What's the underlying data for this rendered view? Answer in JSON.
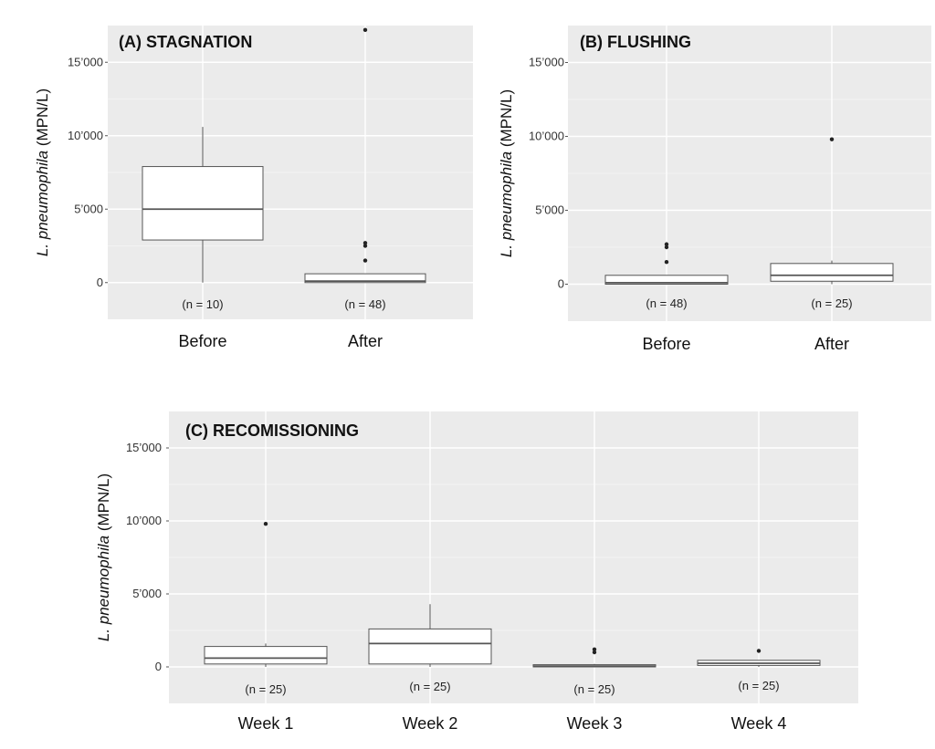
{
  "chart_data": [
    {
      "panel": "A",
      "type": "box",
      "title": "(A) STAGNATION",
      "ylabel_italic": "L. pneumophila",
      "ylabel_unit": " (MPN/L)",
      "yticks": [
        0,
        5000,
        10000,
        15000
      ],
      "ytick_labels": [
        "0",
        "5’000",
        "10’000",
        "15’000"
      ],
      "ylim": [
        -2500,
        17500
      ],
      "categories": [
        "Before",
        "After"
      ],
      "n_labels": [
        "(n = 10)",
        "(n = 48)"
      ],
      "boxes": [
        {
          "category": "Before",
          "whisker_low": 0,
          "q1": 2900,
          "median": 5000,
          "q3": 7900,
          "whisker_high": 10600,
          "outliers": []
        },
        {
          "category": "After",
          "whisker_low": 0,
          "q1": 0,
          "median": 100,
          "q3": 600,
          "whisker_high": 600,
          "outliers": [
            1500,
            2500,
            2700,
            17200
          ]
        }
      ]
    },
    {
      "panel": "B",
      "type": "box",
      "title": "(B) FLUSHING",
      "ylabel_italic": "L. pneumophila",
      "ylabel_unit": " (MPN/L)",
      "yticks": [
        0,
        5000,
        10000,
        15000
      ],
      "ytick_labels": [
        "0",
        "5’000",
        "10’000",
        "15’000"
      ],
      "ylim": [
        -2500,
        17500
      ],
      "categories": [
        "Before",
        "After"
      ],
      "n_labels": [
        "(n = 48)",
        "(n = 25)"
      ],
      "boxes": [
        {
          "category": "Before",
          "whisker_low": 0,
          "q1": 0,
          "median": 100,
          "q3": 600,
          "whisker_high": 600,
          "outliers": [
            1500,
            2500,
            2700
          ]
        },
        {
          "category": "After",
          "whisker_low": 0,
          "q1": 200,
          "median": 600,
          "q3": 1400,
          "whisker_high": 1600,
          "outliers": [
            9800
          ]
        }
      ]
    },
    {
      "panel": "C",
      "type": "box",
      "title": "(C) RECOMISSIONING",
      "ylabel_italic": "L. pneumophila",
      "ylabel_unit": " (MPN/L)",
      "yticks": [
        0,
        5000,
        10000,
        15000
      ],
      "ytick_labels": [
        "0",
        "5’000",
        "10’000",
        "15’000"
      ],
      "ylim": [
        -2500,
        17500
      ],
      "categories": [
        "Week 1",
        "Week 2",
        "Week 3",
        "Week 4"
      ],
      "n_labels": [
        "(n = 25)",
        "(n = 25)",
        "(n = 25)",
        "(n = 25)"
      ],
      "boxes": [
        {
          "category": "Week 1",
          "whisker_low": 0,
          "q1": 200,
          "median": 600,
          "q3": 1400,
          "whisker_high": 1600,
          "outliers": [
            9800
          ]
        },
        {
          "category": "Week 2",
          "whisker_low": 0,
          "q1": 200,
          "median": 1600,
          "q3": 2600,
          "whisker_high": 4300,
          "outliers": []
        },
        {
          "category": "Week 3",
          "whisker_low": 0,
          "q1": 0,
          "median": 50,
          "q3": 150,
          "whisker_high": 200,
          "outliers": [
            1000,
            1200
          ]
        },
        {
          "category": "Week 4",
          "whisker_low": 0,
          "q1": 100,
          "median": 250,
          "q3": 450,
          "whisker_high": 450,
          "outliers": [
            1100
          ]
        }
      ]
    }
  ]
}
